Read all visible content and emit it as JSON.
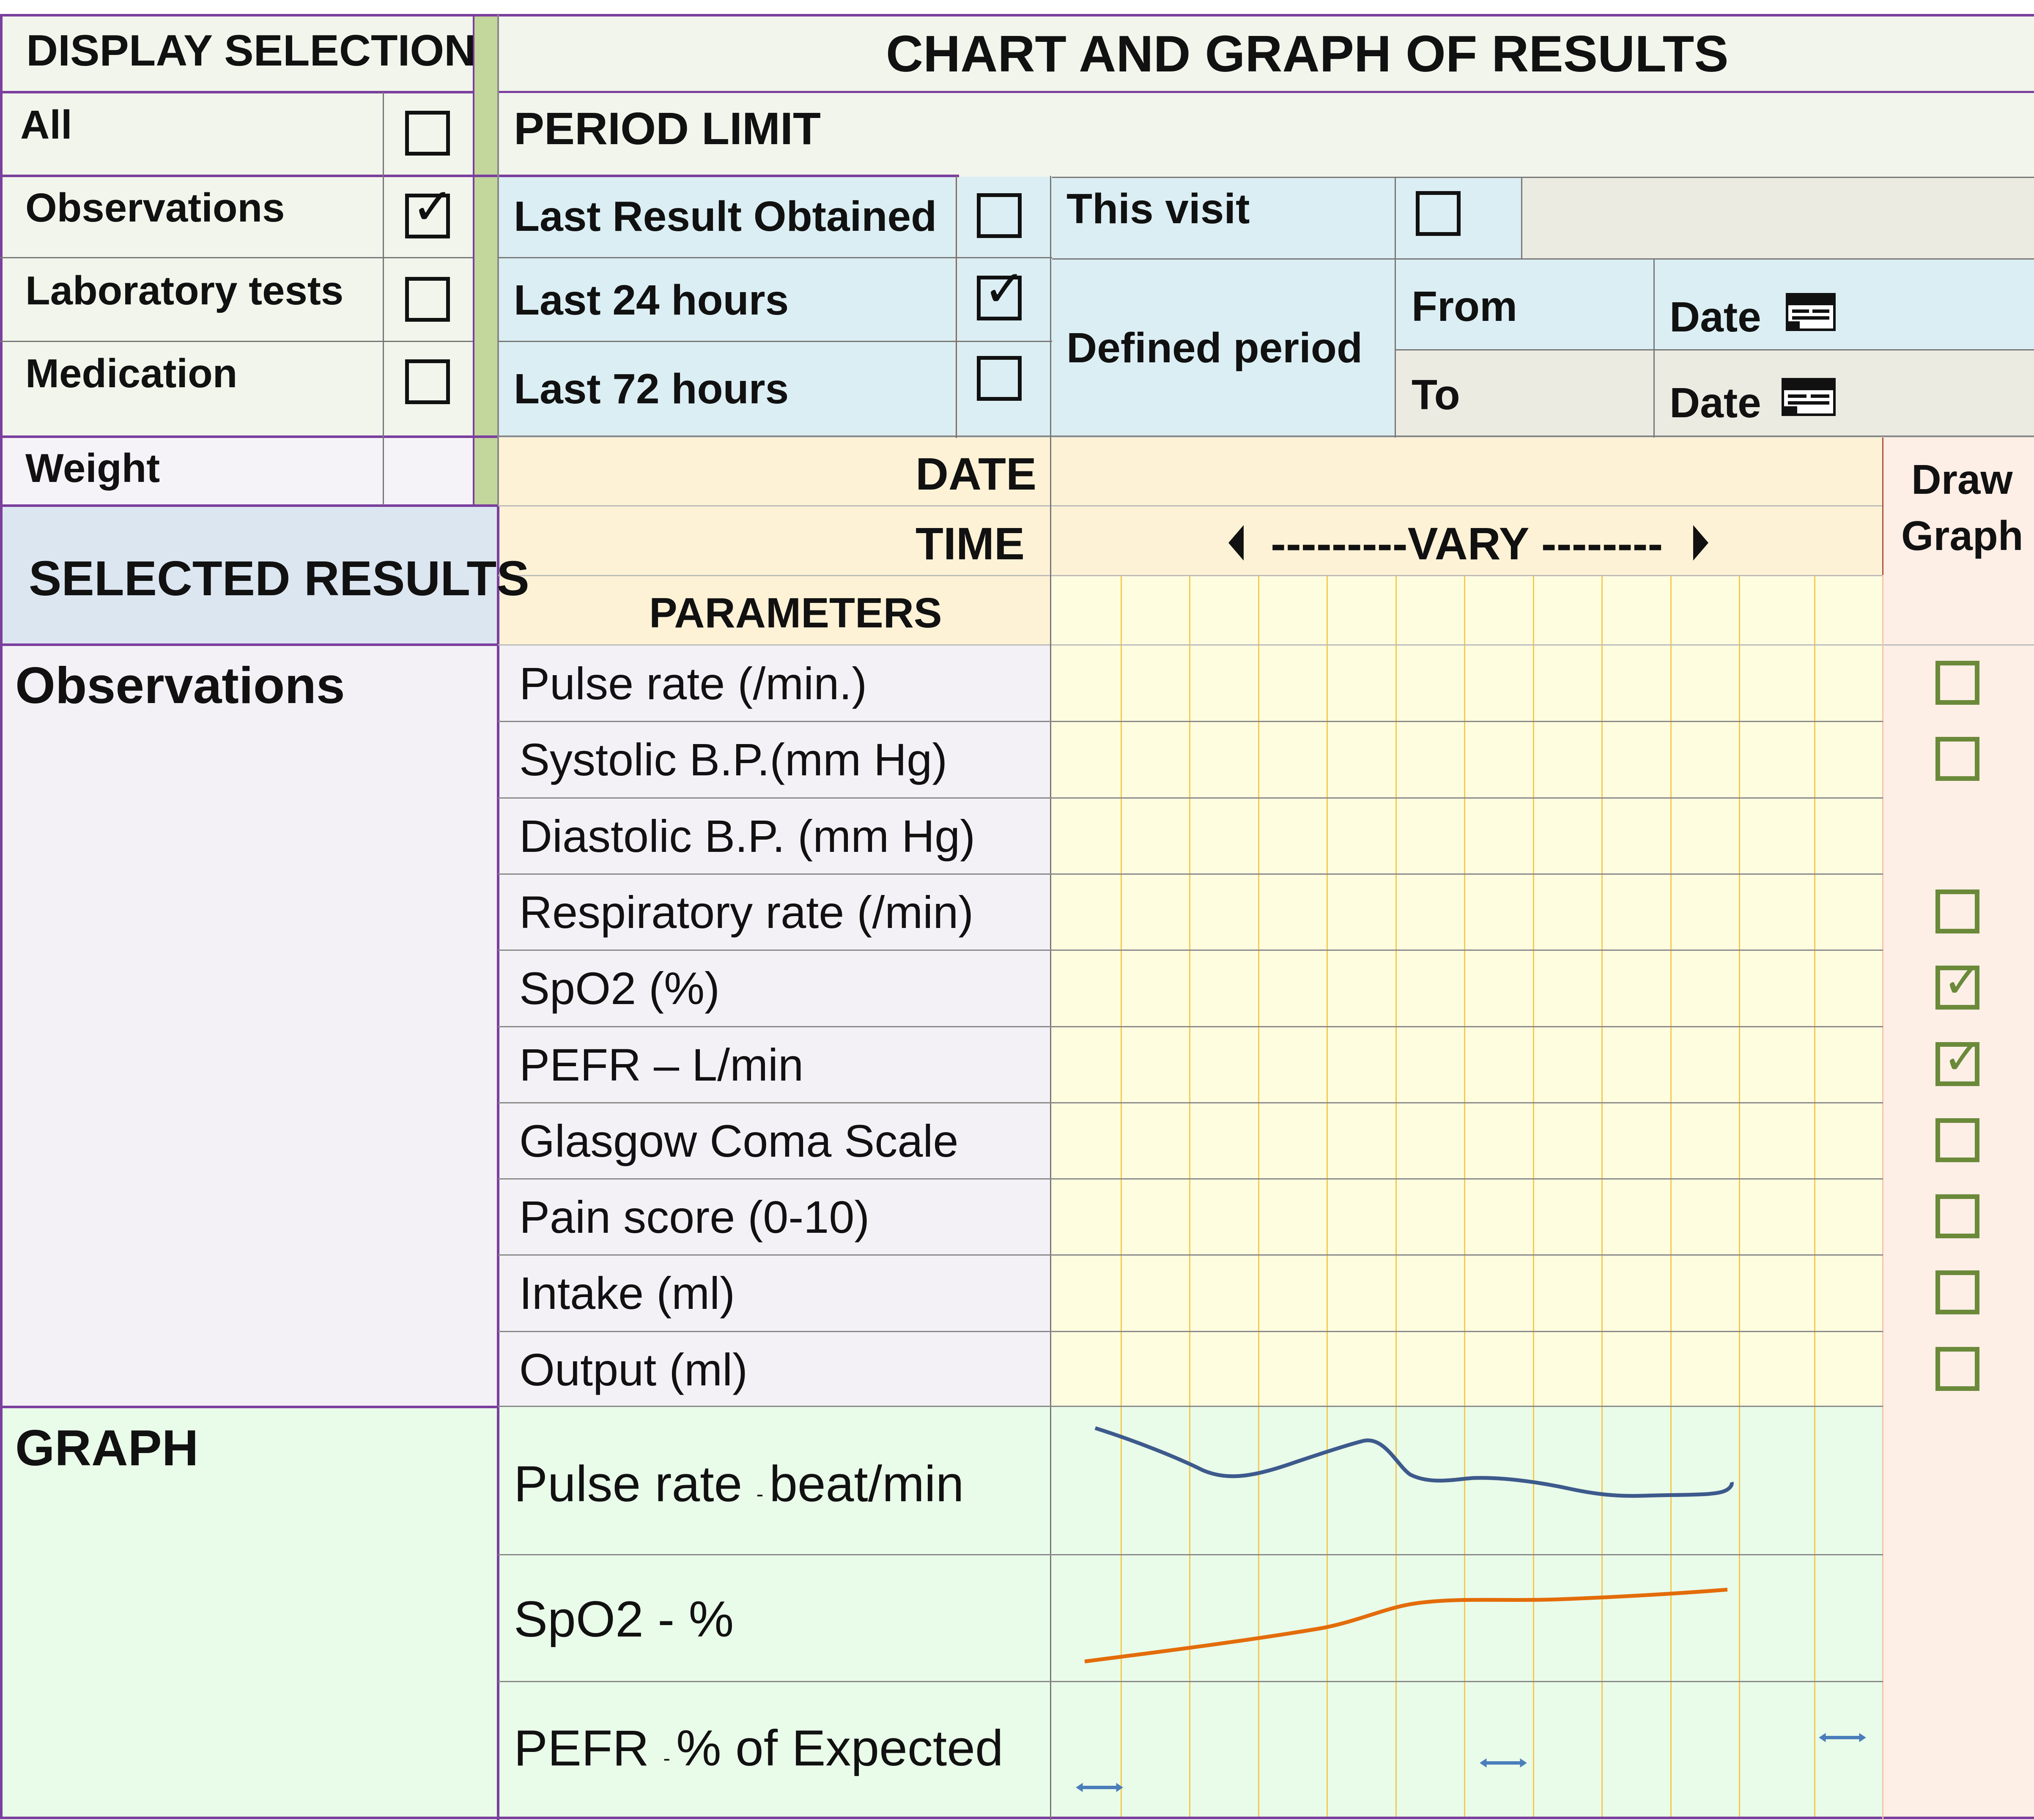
{
  "display_selection": {
    "title": "DISPLAY SELECTION",
    "items": [
      {
        "label": "All",
        "checked": false
      },
      {
        "label": "Observations",
        "checked": true
      },
      {
        "label": "Laboratory tests",
        "checked": false
      },
      {
        "label": "Medication",
        "checked": false
      }
    ],
    "weight_label": "Weight"
  },
  "header": {
    "title": "CHART AND GRAPH OF RESULTS"
  },
  "period": {
    "title": "PERIOD LIMIT",
    "last_result": {
      "label": "Last Result Obtained",
      "checked": false
    },
    "last_24": {
      "label": "Last 24 hours",
      "checked": true
    },
    "last_72": {
      "label": "Last 72 hours",
      "checked": false
    },
    "this_visit": {
      "label": "This visit",
      "checked": false
    },
    "defined_period": "Defined period",
    "from_label": "From",
    "to_label": "To",
    "date_label": "Date"
  },
  "grid_header": {
    "date_label": "DATE",
    "time_label": "TIME",
    "vary_label": "---------VARY --------",
    "parameters_label": "PARAMETERS",
    "draw_graph_label_1": "Draw",
    "draw_graph_label_2": "Graph"
  },
  "selected_results": {
    "title": "SELECTED RESULTS",
    "section_label": "Observations",
    "parameters": [
      {
        "label": "Pulse rate (/min.)",
        "draw": false,
        "has_checkbox": true
      },
      {
        "label": "Systolic B.P.(mm Hg)",
        "draw": false,
        "has_checkbox": true
      },
      {
        "label": "Diastolic B.P. (mm Hg)",
        "draw": false,
        "has_checkbox": false
      },
      {
        "label": "Respiratory rate (/min)",
        "draw": false,
        "has_checkbox": true
      },
      {
        "label": "SpO2 (%)",
        "draw": true,
        "has_checkbox": true
      },
      {
        "label": "PEFR – L/min",
        "draw": true,
        "has_checkbox": true
      },
      {
        "label": "Glasgow Coma Scale",
        "draw": false,
        "has_checkbox": true
      },
      {
        "label": "Pain score (0-10)",
        "draw": false,
        "has_checkbox": true
      },
      {
        "label": "Intake (ml)",
        "draw": false,
        "has_checkbox": true
      },
      {
        "label": "Output (ml)",
        "draw": false,
        "has_checkbox": true
      }
    ]
  },
  "graph": {
    "title": "GRAPH",
    "rows": [
      {
        "label": "Pulse rate ",
        "small": "- ",
        "label_rest": "beat/min"
      },
      {
        "label": "SpO2 - %",
        "small": "",
        "label_rest": ""
      },
      {
        "label": "PEFR ",
        "small": "- ",
        "label_rest": "% of Expected"
      }
    ]
  },
  "colors": {
    "purple_border": "#7b3f9e",
    "green_bar": "#c3d69b",
    "light_panel": "#f2f5ec",
    "blue_panel": "#dbeef3",
    "grey_panel": "#ecebe2",
    "peach_header": "#fef2d6",
    "yellow_grid": "#fffde0",
    "grid_line": "#f2c94c",
    "lavender": "#f3f1f6",
    "green_graph": "#e9fbe9",
    "draw_col": "#fdeee6",
    "pulse_line": "#3d5a8c",
    "spo2_line": "#e36c0a",
    "pefr_marker": "#4a7ebb"
  }
}
